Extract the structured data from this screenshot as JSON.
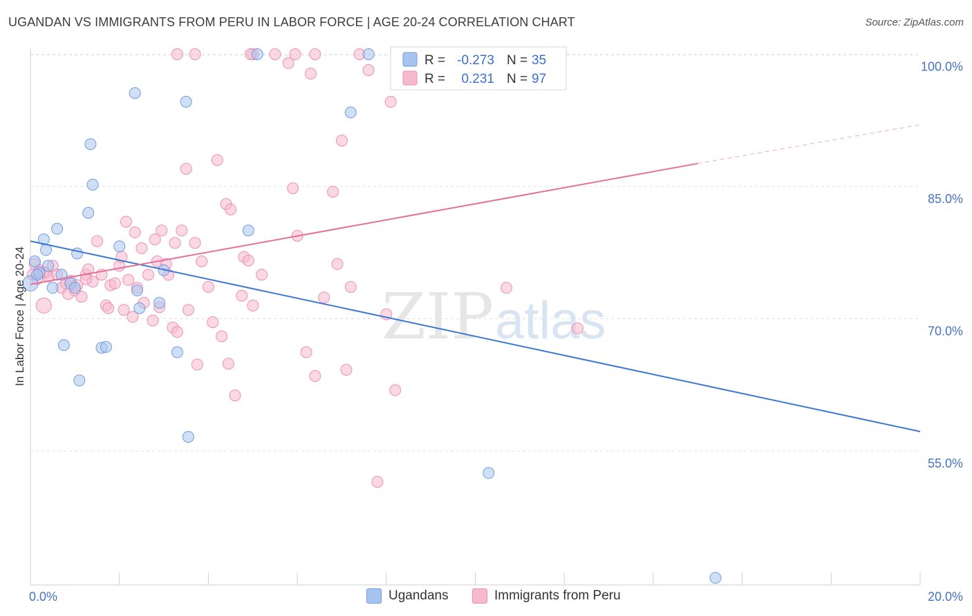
{
  "title": "UGANDAN VS IMMIGRANTS FROM PERU IN LABOR FORCE | AGE 20-24 CORRELATION CHART",
  "source": "Source: ZipAtlas.com",
  "watermark": {
    "zip": "ZIP",
    "atlas": "atlas"
  },
  "colors": {
    "blue_fill": "#a7c4ee",
    "blue_stroke": "#6f9be0",
    "blue_line": "#3a78d4",
    "pink_fill": "#f7b9cd",
    "pink_stroke": "#ef8fae",
    "pink_line": "#e46f98",
    "tick_text": "#4472c4",
    "grid": "#e2e2e2"
  },
  "legend": {
    "rows": [
      {
        "r_label": "R =",
        "r_value": "-0.273",
        "n_label": "N =",
        "n_value": "35"
      },
      {
        "r_label": "R =",
        "r_value": "0.231",
        "n_label": "N =",
        "n_value": "97"
      }
    ],
    "bottom": [
      "Ugandans",
      "Immigrants from Peru"
    ]
  },
  "chart_data": {
    "type": "scatter",
    "title": "UGANDAN VS IMMIGRANTS FROM PERU IN LABOR FORCE | AGE 20-24 CORRELATION CHART",
    "xlabel": "",
    "ylabel": "In Labor Force | Age 20-24",
    "xlim": [
      0,
      20
    ],
    "ylim": [
      40,
      101
    ],
    "x_tick_labels": [
      "0.0%",
      "20.0%"
    ],
    "y_ticks": [
      55,
      70,
      85,
      100
    ],
    "y_tick_labels": [
      "55.0%",
      "70.0%",
      "85.0%",
      "100.0%"
    ],
    "grid": true,
    "legend_placement": "top-center",
    "series": [
      {
        "name": "Ugandans",
        "r": -0.273,
        "n": 35,
        "trend": {
          "x": [
            0.0,
            20.0
          ],
          "y": [
            78.8,
            57.2
          ],
          "dashed_from": null
        },
        "points": [
          [
            0.0,
            74.0
          ],
          [
            0.1,
            76.5
          ],
          [
            0.2,
            75.2
          ],
          [
            0.3,
            79.0
          ],
          [
            0.35,
            77.8
          ],
          [
            0.4,
            76.0
          ],
          [
            0.5,
            73.5
          ],
          [
            0.6,
            80.2
          ],
          [
            0.7,
            75.0
          ],
          [
            0.75,
            67.0
          ],
          [
            0.9,
            74.0
          ],
          [
            1.0,
            73.5
          ],
          [
            1.05,
            77.4
          ],
          [
            1.1,
            63.0
          ],
          [
            1.3,
            82.0
          ],
          [
            1.35,
            89.8
          ],
          [
            1.4,
            85.2
          ],
          [
            1.6,
            66.7
          ],
          [
            1.7,
            66.8
          ],
          [
            2.0,
            78.2
          ],
          [
            2.35,
            95.6
          ],
          [
            2.4,
            73.2
          ],
          [
            2.45,
            71.2
          ],
          [
            2.9,
            71.8
          ],
          [
            3.0,
            75.5
          ],
          [
            3.3,
            66.2
          ],
          [
            3.5,
            94.6
          ],
          [
            3.55,
            56.6
          ],
          [
            4.9,
            80.0
          ],
          [
            5.1,
            100.0
          ],
          [
            7.2,
            93.4
          ],
          [
            7.6,
            100.0
          ],
          [
            10.3,
            52.5
          ],
          [
            15.4,
            40.6
          ],
          [
            0.15,
            75.0
          ]
        ]
      },
      {
        "name": "Immigrants from Peru",
        "r": 0.231,
        "n": 97,
        "trend": {
          "x": [
            0.0,
            15.0,
            20.0
          ],
          "y": [
            73.9,
            87.6,
            92.0
          ],
          "dashed_from": 15.0
        },
        "points": [
          [
            0.05,
            75.0
          ],
          [
            0.1,
            76.2
          ],
          [
            0.15,
            74.5
          ],
          [
            0.2,
            75.5
          ],
          [
            0.3,
            71.5
          ],
          [
            0.35,
            75.2
          ],
          [
            0.4,
            74.8
          ],
          [
            0.5,
            76.0
          ],
          [
            0.6,
            75.0
          ],
          [
            0.7,
            73.5
          ],
          [
            0.8,
            74.0
          ],
          [
            0.85,
            72.8
          ],
          [
            0.9,
            74.3
          ],
          [
            1.0,
            73.2
          ],
          [
            1.05,
            73.8
          ],
          [
            1.15,
            72.5
          ],
          [
            1.25,
            75.0
          ],
          [
            1.3,
            75.6
          ],
          [
            1.4,
            74.2
          ],
          [
            1.5,
            78.8
          ],
          [
            1.6,
            75.0
          ],
          [
            1.7,
            71.5
          ],
          [
            1.75,
            71.2
          ],
          [
            1.8,
            73.8
          ],
          [
            1.9,
            74.0
          ],
          [
            2.0,
            76.0
          ],
          [
            2.05,
            77.0
          ],
          [
            2.1,
            71.0
          ],
          [
            2.15,
            81.0
          ],
          [
            2.2,
            74.4
          ],
          [
            2.3,
            70.2
          ],
          [
            2.35,
            79.8
          ],
          [
            2.4,
            73.5
          ],
          [
            2.5,
            78.0
          ],
          [
            2.55,
            71.8
          ],
          [
            2.65,
            75.0
          ],
          [
            2.75,
            69.8
          ],
          [
            2.8,
            79.0
          ],
          [
            2.85,
            76.5
          ],
          [
            2.9,
            71.3
          ],
          [
            2.95,
            80.0
          ],
          [
            3.05,
            76.2
          ],
          [
            3.1,
            75.0
          ],
          [
            3.2,
            69.0
          ],
          [
            3.25,
            78.6
          ],
          [
            3.3,
            68.5
          ],
          [
            3.4,
            80.0
          ],
          [
            3.5,
            87.0
          ],
          [
            3.55,
            71.0
          ],
          [
            3.7,
            78.6
          ],
          [
            3.75,
            64.8
          ],
          [
            3.85,
            76.5
          ],
          [
            4.0,
            73.6
          ],
          [
            4.1,
            69.6
          ],
          [
            4.2,
            88.0
          ],
          [
            4.3,
            68.0
          ],
          [
            4.4,
            83.0
          ],
          [
            4.45,
            64.9
          ],
          [
            4.5,
            82.4
          ],
          [
            4.6,
            61.3
          ],
          [
            4.75,
            72.6
          ],
          [
            4.8,
            77.0
          ],
          [
            4.9,
            76.6
          ],
          [
            5.0,
            71.5
          ],
          [
            5.2,
            75.0
          ],
          [
            5.0,
            100.0
          ],
          [
            5.5,
            100.0
          ],
          [
            5.8,
            99.0
          ],
          [
            5.9,
            84.8
          ],
          [
            6.0,
            79.4
          ],
          [
            5.95,
            100.0
          ],
          [
            6.2,
            66.2
          ],
          [
            6.3,
            97.8
          ],
          [
            6.4,
            63.5
          ],
          [
            6.6,
            72.4
          ],
          [
            6.8,
            84.4
          ],
          [
            6.9,
            76.2
          ],
          [
            7.0,
            90.2
          ],
          [
            7.1,
            64.2
          ],
          [
            7.2,
            73.6
          ],
          [
            7.4,
            100.0
          ],
          [
            7.6,
            98.2
          ],
          [
            7.8,
            51.5
          ],
          [
            8.0,
            70.5
          ],
          [
            8.1,
            94.6
          ],
          [
            8.2,
            61.9
          ],
          [
            8.5,
            100.0
          ],
          [
            9.5,
            100.0
          ],
          [
            10.05,
            100.0
          ],
          [
            10.7,
            73.5
          ],
          [
            12.3,
            68.9
          ],
          [
            3.3,
            100.0
          ],
          [
            3.7,
            100.0
          ],
          [
            4.95,
            100.0
          ],
          [
            6.4,
            100.0
          ],
          [
            1.25,
            74.5
          ],
          [
            0.3,
            75.3
          ]
        ]
      }
    ]
  }
}
